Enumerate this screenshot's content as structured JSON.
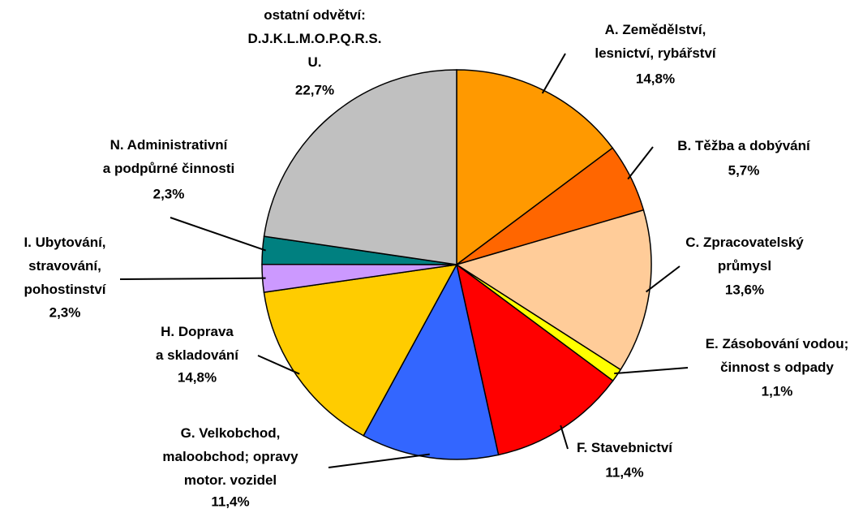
{
  "chart_data": {
    "type": "pie",
    "categories": [
      "A. Zemědělství,\nlesnictví, rybářství",
      "B. Těžba a dobývání",
      "C. Zpracovatelský\nprůmysl",
      "E. Zásobování vodou;\nčinnost s odpady",
      "F. Stavebnictví",
      "G. Velkobchod,\nmaloobchod; opravy\nmotor. vozidel",
      "H. Doprava\na skladování",
      "I. Ubytování,\nstravování,\npohostinství",
      "N. Administrativní\na podpůrné činnosti",
      "ostatní odvětví:\nD.J.K.L.M.O.P.Q.R.S.\nU."
    ],
    "values": [
      14.8,
      5.7,
      13.6,
      1.1,
      11.4,
      11.4,
      14.8,
      2.3,
      2.3,
      22.7
    ],
    "value_labels": [
      "14,8%",
      "5,7%",
      "13,6%",
      "1,1%",
      "11,4%",
      "11,4%",
      "14,8%",
      "2,3%",
      "2,3%",
      "22,7%"
    ],
    "colors": [
      "#ff9900",
      "#ff6600",
      "#ffcc99",
      "#ffff00",
      "#ff0000",
      "#3366ff",
      "#ffcc00",
      "#cc99ff",
      "#008080",
      "#c0c0c0"
    ]
  }
}
